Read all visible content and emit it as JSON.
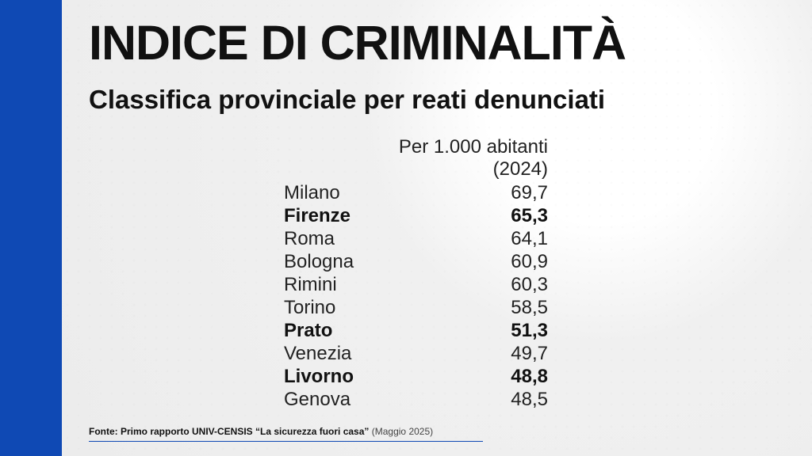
{
  "page": {
    "accent_color": "#0f49b4"
  },
  "title": "INDICE DI CRIMINALITÀ",
  "subtitle": "Classifica provinciale per reati denunciati",
  "source": {
    "label": "Fonte: Primo rapporto UNIV-CENSIS “La sicurezza fuori casa”",
    "date": "(Maggio 2025)"
  },
  "chart_data": {
    "type": "table",
    "columns": [
      "",
      "Per 1.000 abitanti (2024)"
    ],
    "rows": [
      {
        "province": "Milano",
        "value": "69,7",
        "highlight": false
      },
      {
        "province": "Firenze",
        "value": "65,3",
        "highlight": true
      },
      {
        "province": "Roma",
        "value": "64,1",
        "highlight": false
      },
      {
        "province": "Bologna",
        "value": "60,9",
        "highlight": false
      },
      {
        "province": "Rimini",
        "value": "60,3",
        "highlight": false
      },
      {
        "province": "Torino",
        "value": "58,5",
        "highlight": false
      },
      {
        "province": "Prato",
        "value": "51,3",
        "highlight": true
      },
      {
        "province": "Venezia",
        "value": "49,7",
        "highlight": false
      },
      {
        "province": "Livorno",
        "value": "48,8",
        "highlight": true
      },
      {
        "province": "Genova",
        "value": "48,5",
        "highlight": false
      }
    ]
  }
}
